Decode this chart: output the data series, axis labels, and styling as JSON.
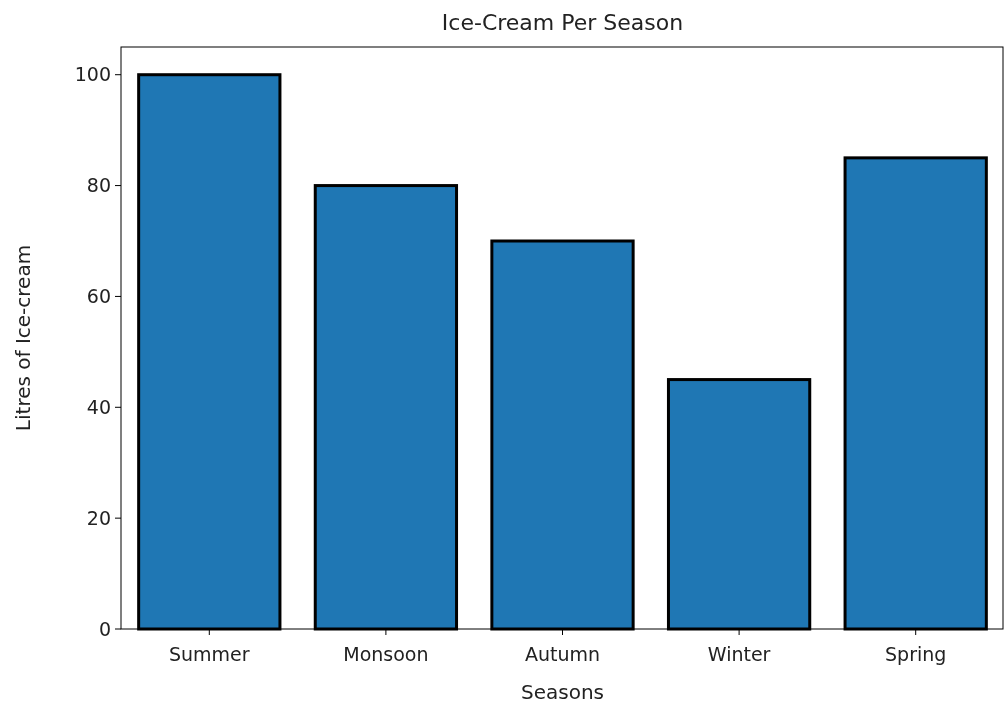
{
  "chart_data": {
    "type": "bar",
    "title": "Ice-Cream Per Season",
    "xlabel": "Seasons",
    "ylabel": "Litres of Ice-cream",
    "categories": [
      "Summer",
      "Monsoon",
      "Autumn",
      "Winter",
      "Spring"
    ],
    "values": [
      100,
      80,
      70,
      45,
      85
    ],
    "color": "#1f77b4",
    "ylim": [
      0,
      105
    ],
    "yticks": [
      0,
      20,
      40,
      60,
      80,
      100
    ],
    "grid": false
  }
}
